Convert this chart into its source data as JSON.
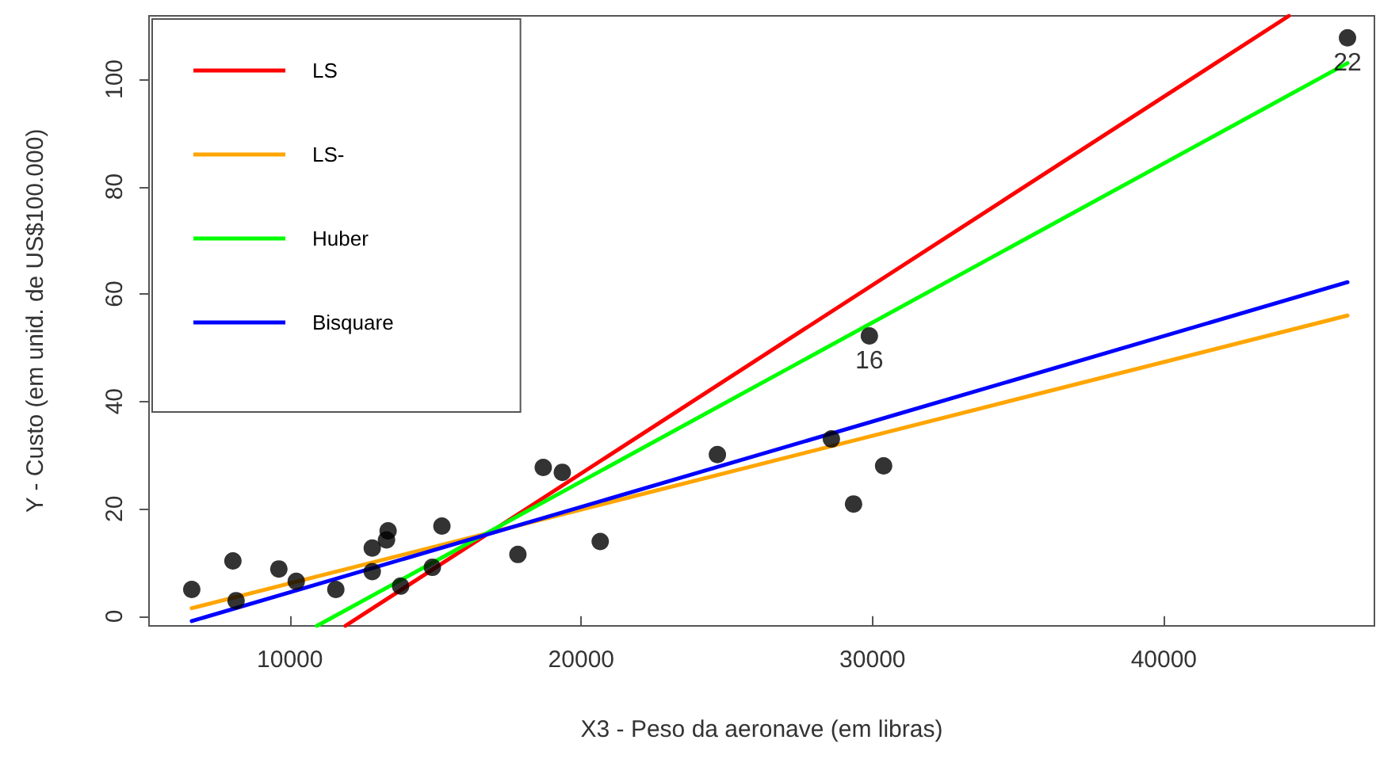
{
  "chart_data": {
    "type": "scatter",
    "xlabel": "X3 - Peso da aeronave (em libras)",
    "ylabel": "Y - Custo (em unid. de US$100.000)",
    "xlim": [
      5163,
      47228
    ],
    "ylim": [
      -1.8,
      111.8
    ],
    "xticks": [
      10000,
      20000,
      30000,
      40000
    ],
    "yticks": [
      0,
      20,
      40,
      60,
      80,
      100
    ],
    "grid": false,
    "legend": "top left",
    "series": [
      {
        "marker": "circle",
        "color": "#000000",
        "x": [
          6630,
          8043,
          8152,
          9620,
          10217,
          11576,
          12826,
          12826,
          13315,
          13370,
          13800,
          14890,
          15217,
          17826,
          18696,
          19350,
          20652,
          24674,
          28587,
          29348,
          29891,
          30380,
          46304
        ],
        "values": [
          5.0,
          10.3,
          2.9,
          8.8,
          6.5,
          5.0,
          12.7,
          8.3,
          14.2,
          15.9,
          5.6,
          9.1,
          16.8,
          11.5,
          27.7,
          26.8,
          13.9,
          30.1,
          33.0,
          20.9,
          52.2,
          28.0,
          107.7
        ]
      },
      {
        "type": "line",
        "name": "LS",
        "color": "#ff0000",
        "marker": "none",
        "x": [
          11902,
          44293
        ],
        "values": [
          -1.8,
          111.8
        ]
      },
      {
        "type": "line",
        "name": "LS-",
        "color": "#ffa500",
        "marker": "none",
        "x": [
          6630,
          46304
        ],
        "values": [
          1.5,
          56.0
        ]
      },
      {
        "type": "line",
        "name": "Huber",
        "color": "#00ff00",
        "marker": "none",
        "x": [
          10924,
          46304
        ],
        "values": [
          -1.8,
          103.0
        ]
      },
      {
        "type": "line",
        "name": "Bisquare",
        "color": "#0000ff",
        "marker": "none",
        "x": [
          6630,
          46304
        ],
        "values": [
          -0.9,
          62.2
        ]
      }
    ],
    "annotations": [
      {
        "text": "16",
        "x": 29891,
        "y": 52.2
      },
      {
        "text": "22",
        "x": 46304,
        "y": 107.7
      }
    ]
  }
}
